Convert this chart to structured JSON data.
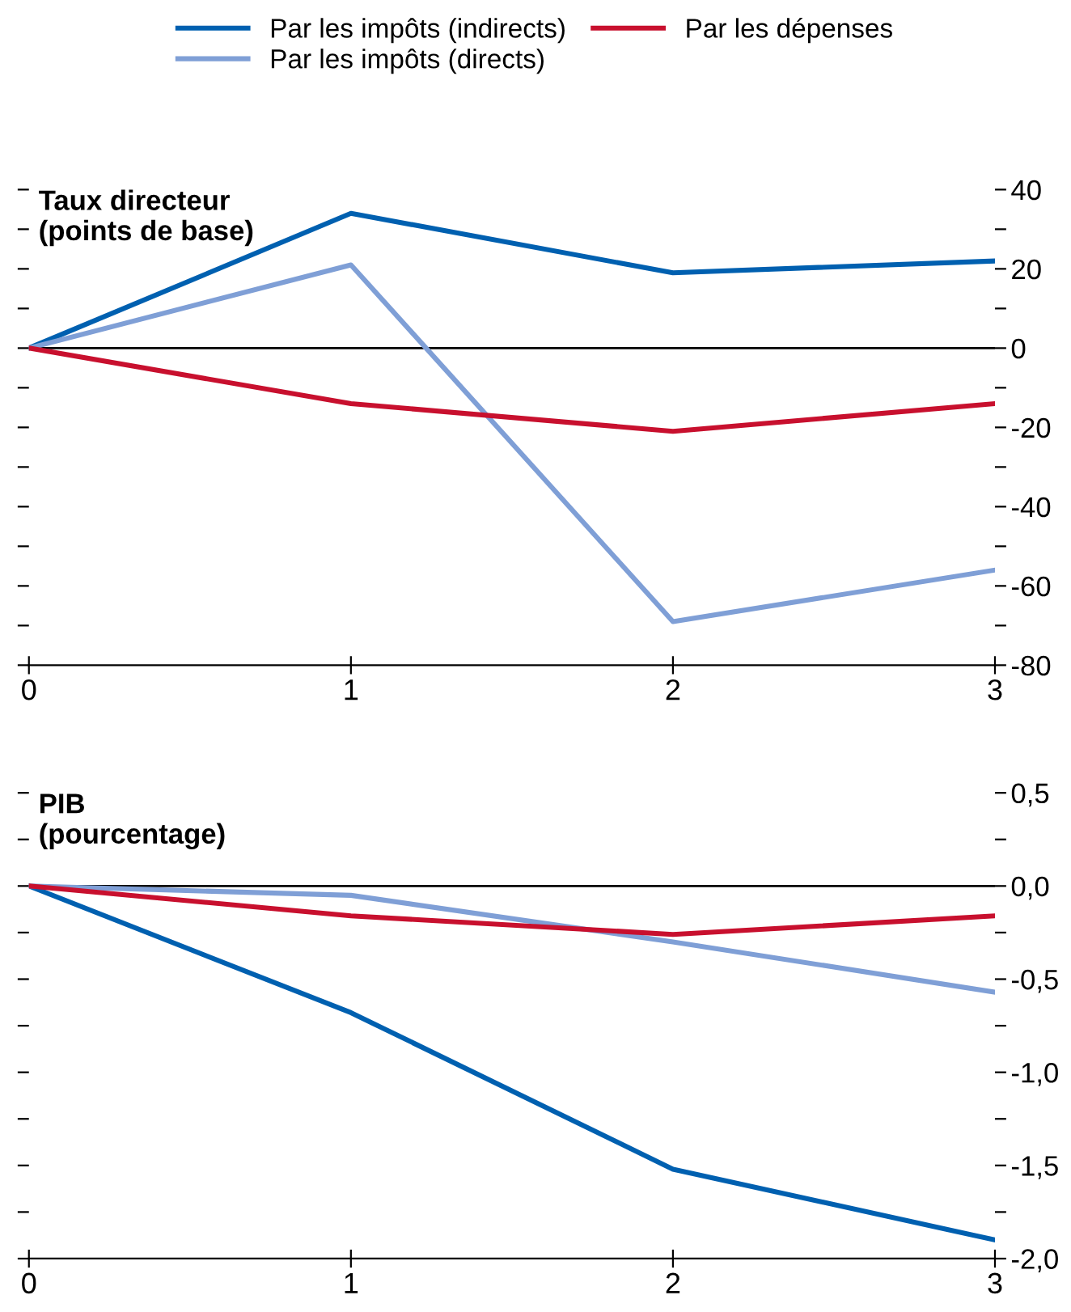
{
  "chart_data": [
    {
      "type": "line",
      "title": "Taux directeur\n(points de base)",
      "x": [
        0,
        1,
        2,
        3
      ],
      "xlim": [
        0,
        3
      ],
      "xticks": [
        0,
        1,
        2,
        3
      ],
      "ylim": [
        -80,
        40
      ],
      "yticks": [
        {
          "value": -80,
          "label": "-80"
        },
        {
          "value": -70,
          "label": null
        },
        {
          "value": -60,
          "label": "-60"
        },
        {
          "value": -50,
          "label": null
        },
        {
          "value": -40,
          "label": "-40"
        },
        {
          "value": -30,
          "label": null
        },
        {
          "value": -20,
          "label": "-20"
        },
        {
          "value": -10,
          "label": null
        },
        0,
        {
          "value": 10,
          "label": null
        },
        20,
        {
          "value": 30,
          "label": null
        },
        40
      ],
      "legend": "top",
      "grid": false,
      "ref_lines": [
        {
          "axis": "y",
          "value": 0,
          "color": "#000000"
        }
      ],
      "series": [
        {
          "name": "Par les impôts (indirects)",
          "color": "#0060b0",
          "values": [
            0,
            34,
            19,
            22
          ]
        },
        {
          "name": "Par les impôts (directs)",
          "color": "#7f9fd6",
          "values": [
            0,
            21,
            -69,
            -56
          ]
        },
        {
          "name": "Par les dépenses",
          "color": "#c8102e",
          "values": [
            0,
            -14,
            -21,
            -14
          ]
        }
      ]
    },
    {
      "type": "line",
      "title": "PIB\n(pourcentage)",
      "x": [
        0,
        1,
        2,
        3
      ],
      "xlim": [
        0,
        3
      ],
      "xticks": [
        0,
        1,
        2,
        3
      ],
      "ylim": [
        -2.0,
        0.5
      ],
      "yticks": [
        {
          "value": -2.0,
          "label": "-2,0"
        },
        {
          "value": -1.75,
          "label": null
        },
        {
          "value": -1.5,
          "label": "-1,5"
        },
        {
          "value": -1.25,
          "label": null
        },
        {
          "value": -1.0,
          "label": "-1,0"
        },
        {
          "value": -0.75,
          "label": null
        },
        {
          "value": -0.5,
          "label": "-0,5"
        },
        {
          "value": -0.25,
          "label": null
        },
        {
          "value": 0,
          "label": "0,0"
        },
        {
          "value": 0.25,
          "label": null
        },
        {
          "value": 0.5,
          "label": "0,5"
        }
      ],
      "grid": false,
      "ref_lines": [
        {
          "axis": "y",
          "value": 0,
          "color": "#000000"
        }
      ],
      "series": [
        {
          "color": "#0060b0",
          "values": [
            0,
            -0.68,
            -1.52,
            -1.9
          ]
        },
        {
          "color": "#7f9fd6",
          "values": [
            0,
            -0.05,
            -0.3,
            -0.57
          ]
        },
        {
          "color": "#c8102e",
          "values": [
            0,
            -0.16,
            -0.26,
            -0.16
          ]
        }
      ]
    }
  ]
}
